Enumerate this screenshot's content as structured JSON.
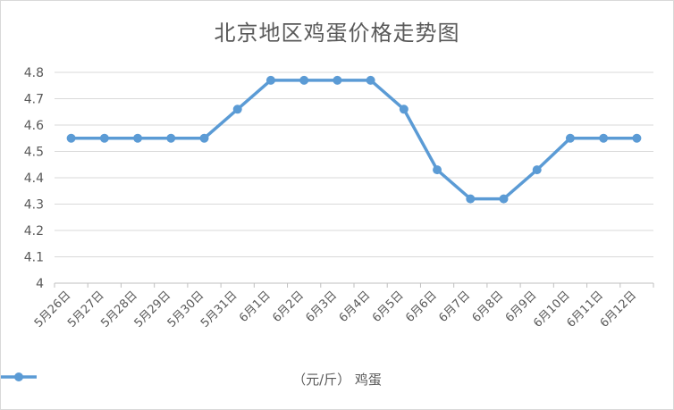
{
  "chart_data": {
    "type": "line",
    "title": "北京地区鸡蛋价格走势图",
    "categories": [
      "5月26日",
      "5月27日",
      "5月28日",
      "5月29日",
      "5月30日",
      "5月31日",
      "6月1日",
      "6月2日",
      "6月3日",
      "6月4日",
      "6月5日",
      "6月6日",
      "6月7日",
      "6月8日",
      "6月9日",
      "6月10日",
      "6月11日",
      "6月12日"
    ],
    "series": [
      {
        "name": "（元/斤） 鸡蛋",
        "values": [
          4.55,
          4.55,
          4.55,
          4.55,
          4.55,
          4.66,
          4.77,
          4.77,
          4.77,
          4.77,
          4.66,
          4.43,
          4.32,
          4.32,
          4.43,
          4.55,
          4.55,
          4.55
        ]
      }
    ],
    "y_ticks": [
      "4",
      "4.1",
      "4.2",
      "4.3",
      "4.4",
      "4.5",
      "4.6",
      "4.7",
      "4.8"
    ],
    "ylim": [
      4,
      4.8
    ],
    "grid": "horizontal",
    "legend_position": "bottom",
    "line_color": "#5b9bd5"
  }
}
